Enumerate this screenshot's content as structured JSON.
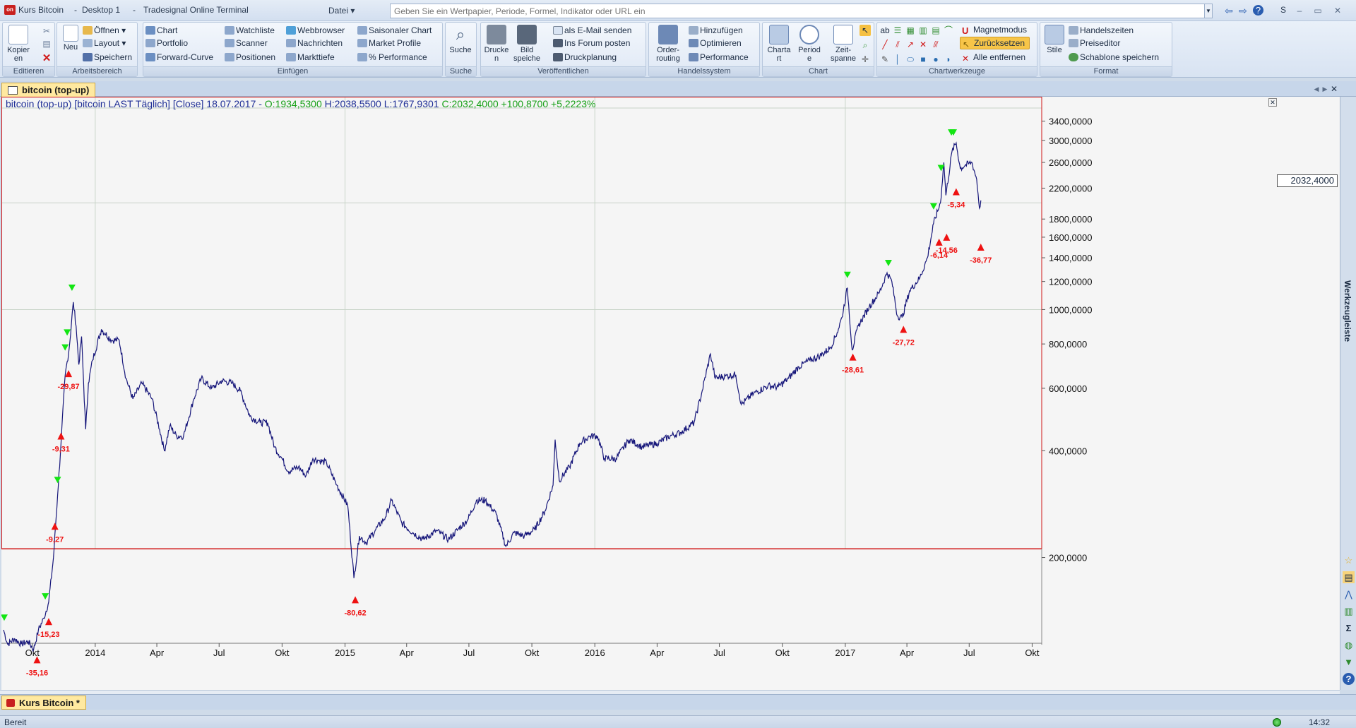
{
  "titlebar": {
    "logo_text": "on",
    "app_title": "Kurs Bitcoin",
    "desktop": "Desktop 1",
    "product": "Tradesignal Online Terminal",
    "file_menu": "Datei",
    "search_placeholder": "Geben Sie ein Wertpapier, Periode, Formel, Indikator oder URL ein",
    "search_hint": "S"
  },
  "ribbon": {
    "groups": [
      {
        "label": "Editieren"
      },
      {
        "label": "Arbeitsbereich"
      },
      {
        "label": "Einfügen"
      },
      {
        "label": "Suche"
      },
      {
        "label": "Veröffentlichen"
      },
      {
        "label": "Handelssystem"
      },
      {
        "label": "Chart"
      },
      {
        "label": "Chartwerkzeuge"
      },
      {
        "label": "Format"
      }
    ],
    "editieren": {
      "kopieren": "Kopier en"
    },
    "arbeitsbereich": {
      "neu": "Neu",
      "oeffnen": "Öffnen",
      "layout": "Layout",
      "speichern": "Speichern"
    },
    "einfuegen": {
      "chart": "Chart",
      "portfolio": "Portfolio",
      "forward_curve": "Forward-Curve",
      "watchliste": "Watchliste",
      "scanner": "Scanner",
      "positionen": "Positionen",
      "webbrowser": "Webbrowser",
      "nachrichten": "Nachrichten",
      "markttiefe": "Markttiefe",
      "saisonaler_chart": "Saisonaler Chart",
      "market_profile": "Market Profile",
      "performance": "% Performance"
    },
    "suche": {
      "suche": "Suche"
    },
    "veroeffentlichen": {
      "drucken": "Drucke n",
      "bild_speichern": "Bild speiche",
      "email": "als E-Mail senden",
      "forum": "Ins Forum posten",
      "druckplanung": "Druckplanung"
    },
    "handelssystem": {
      "orderrouting": "Order-routing",
      "hinzufuegen": "Hinzufügen",
      "optimieren": "Optimieren",
      "performance": "Performance"
    },
    "chart": {
      "chartart": "Charta rt",
      "periode": "Period e",
      "zeitspanne": "Zeit-spanne"
    },
    "chartwerkzeuge": {
      "magnetmodus": "Magnetmodus",
      "zuruecksetzen": "Zurücksetzen",
      "alle_entfernen": "Alle entfernen"
    },
    "format": {
      "stile": "Stile",
      "handelszeiten": "Handelszeiten",
      "preiseditor": "Preiseditor",
      "schablone": "Schablone speichern"
    }
  },
  "chart_tab": {
    "label": "bitcoin (top-up)"
  },
  "chart_header": {
    "prefix": "bitcoin (top-up) [bitcoin LAST Täglich] [Close] 18.07.2017 -",
    "ohlc_open": "O:1934,5300",
    "ohlc_high_low": "H:2038,5500 L:1767,9301",
    "ohlc_change": "C:2032,4000 +100,8700 +5,2223%"
  },
  "price_box": "2032,4000",
  "right_sidebar": {
    "label": "Werkzeugleiste"
  },
  "desktop_tab": {
    "label": "Kurs Bitcoin *"
  },
  "status": {
    "text": "Bereit",
    "time": "14:32"
  },
  "colors": {
    "price_line": "#16167a",
    "buy_marker": "#13e513",
    "sell_marker": "#ee1111",
    "frame_red": "#d01515"
  },
  "chart_data": {
    "type": "line",
    "title": "bitcoin (top-up) [bitcoin LAST Täglich] [Close]",
    "y_scale": "log",
    "ylim": [
      120,
      3600
    ],
    "y_ticks": [
      {
        "label": "3400,0000",
        "value": 3400
      },
      {
        "label": "3000,0000",
        "value": 3000
      },
      {
        "label": "2600,0000",
        "value": 2600
      },
      {
        "label": "2200,0000",
        "value": 2200
      },
      {
        "label": "1800,0000",
        "value": 1800
      },
      {
        "label": "1600,0000",
        "value": 1600
      },
      {
        "label": "1400,0000",
        "value": 1400
      },
      {
        "label": "1200,0000",
        "value": 1200
      },
      {
        "label": "1000,0000",
        "value": 1000
      },
      {
        "label": "800,0000",
        "value": 800
      },
      {
        "label": "600,0000",
        "value": 600
      },
      {
        "label": "400,0000",
        "value": 400
      },
      {
        "label": "200,0000",
        "value": 200
      }
    ],
    "x_ticks": [
      {
        "label": "Okt",
        "date": "2013-10-01"
      },
      {
        "label": "2014",
        "date": "2014-01-01"
      },
      {
        "label": "Apr",
        "date": "2014-04-01"
      },
      {
        "label": "Jul",
        "date": "2014-07-01"
      },
      {
        "label": "Okt",
        "date": "2014-10-01"
      },
      {
        "label": "2015",
        "date": "2015-01-01"
      },
      {
        "label": "Apr",
        "date": "2015-04-01"
      },
      {
        "label": "Jul",
        "date": "2015-07-01"
      },
      {
        "label": "Okt",
        "date": "2015-10-01"
      },
      {
        "label": "2016",
        "date": "2016-01-01"
      },
      {
        "label": "Apr",
        "date": "2016-04-01"
      },
      {
        "label": "Jul",
        "date": "2016-07-01"
      },
      {
        "label": "Okt",
        "date": "2016-10-01"
      },
      {
        "label": "2017",
        "date": "2017-01-01"
      },
      {
        "label": "Apr",
        "date": "2017-04-01"
      },
      {
        "label": "Jul",
        "date": "2017-07-01"
      },
      {
        "label": "Okt",
        "date": "2017-10-01"
      }
    ],
    "xlim": [
      "2013-08-20",
      "2017-10-15"
    ],
    "vertical_grid_dates": [
      "2014-01-01",
      "2015-01-01",
      "2016-01-01",
      "2017-01-01"
    ],
    "horizontal_grid_values": [
      2000,
      1000
    ],
    "series": [
      {
        "points": [
          [
            "2013-08-20",
            125
          ],
          [
            "2013-08-26",
            114
          ],
          [
            "2013-09-05",
            118
          ],
          [
            "2013-09-15",
            114
          ],
          [
            "2013-09-25",
            116
          ],
          [
            "2013-10-03",
            110
          ],
          [
            "2013-10-10",
            125
          ],
          [
            "2013-10-18",
            135
          ],
          [
            "2013-10-25",
            150
          ],
          [
            "2013-11-01",
            200
          ],
          [
            "2013-11-07",
            300
          ],
          [
            "2013-11-12",
            420
          ],
          [
            "2013-11-18",
            650
          ],
          [
            "2013-11-24",
            780
          ],
          [
            "2013-11-30",
            1050
          ],
          [
            "2013-12-04",
            900
          ],
          [
            "2013-12-08",
            700
          ],
          [
            "2013-12-12",
            840
          ],
          [
            "2013-12-18",
            460
          ],
          [
            "2013-12-22",
            620
          ],
          [
            "2013-12-28",
            720
          ],
          [
            "2014-01-10",
            880
          ],
          [
            "2014-01-25",
            820
          ],
          [
            "2014-02-05",
            820
          ],
          [
            "2014-02-15",
            640
          ],
          [
            "2014-02-25",
            560
          ],
          [
            "2014-03-10",
            620
          ],
          [
            "2014-03-25",
            560
          ],
          [
            "2014-04-05",
            460
          ],
          [
            "2014-04-12",
            400
          ],
          [
            "2014-04-20",
            470
          ],
          [
            "2014-04-30",
            440
          ],
          [
            "2014-05-10",
            440
          ],
          [
            "2014-05-25",
            560
          ],
          [
            "2014-06-05",
            640
          ],
          [
            "2014-06-20",
            600
          ],
          [
            "2014-07-05",
            630
          ],
          [
            "2014-07-20",
            620
          ],
          [
            "2014-08-01",
            590
          ],
          [
            "2014-08-15",
            500
          ],
          [
            "2014-08-30",
            480
          ],
          [
            "2014-09-10",
            480
          ],
          [
            "2014-09-20",
            410
          ],
          [
            "2014-10-01",
            380
          ],
          [
            "2014-10-10",
            350
          ],
          [
            "2014-10-25",
            360
          ],
          [
            "2014-11-05",
            340
          ],
          [
            "2014-11-15",
            380
          ],
          [
            "2014-11-25",
            375
          ],
          [
            "2014-12-05",
            370
          ],
          [
            "2014-12-20",
            320
          ],
          [
            "2015-01-05",
            280
          ],
          [
            "2015-01-14",
            175
          ],
          [
            "2015-01-22",
            230
          ],
          [
            "2015-02-01",
            220
          ],
          [
            "2015-02-15",
            240
          ],
          [
            "2015-03-01",
            260
          ],
          [
            "2015-03-10",
            290
          ],
          [
            "2015-03-25",
            250
          ],
          [
            "2015-04-10",
            235
          ],
          [
            "2015-04-25",
            225
          ],
          [
            "2015-05-15",
            238
          ],
          [
            "2015-06-01",
            225
          ],
          [
            "2015-06-15",
            240
          ],
          [
            "2015-06-30",
            257
          ],
          [
            "2015-07-12",
            290
          ],
          [
            "2015-07-25",
            290
          ],
          [
            "2015-08-10",
            265
          ],
          [
            "2015-08-24",
            215
          ],
          [
            "2015-09-05",
            235
          ],
          [
            "2015-09-20",
            230
          ],
          [
            "2015-10-05",
            240
          ],
          [
            "2015-10-20",
            270
          ],
          [
            "2015-11-01",
            320
          ],
          [
            "2015-11-04",
            430
          ],
          [
            "2015-11-10",
            330
          ],
          [
            "2015-11-25",
            360
          ],
          [
            "2015-12-10",
            420
          ],
          [
            "2015-12-25",
            440
          ],
          [
            "2016-01-05",
            440
          ],
          [
            "2016-01-15",
            380
          ],
          [
            "2016-02-01",
            380
          ],
          [
            "2016-02-20",
            430
          ],
          [
            "2016-03-10",
            410
          ],
          [
            "2016-04-01",
            420
          ],
          [
            "2016-04-20",
            440
          ],
          [
            "2016-05-05",
            450
          ],
          [
            "2016-05-25",
            480
          ],
          [
            "2016-06-05",
            580
          ],
          [
            "2016-06-18",
            750
          ],
          [
            "2016-06-25",
            640
          ],
          [
            "2016-07-10",
            650
          ],
          [
            "2016-07-25",
            655
          ],
          [
            "2016-08-02",
            540
          ],
          [
            "2016-08-20",
            580
          ],
          [
            "2016-09-10",
            610
          ],
          [
            "2016-09-25",
            605
          ],
          [
            "2016-10-10",
            640
          ],
          [
            "2016-10-25",
            690
          ],
          [
            "2016-11-10",
            720
          ],
          [
            "2016-11-25",
            740
          ],
          [
            "2016-12-10",
            780
          ],
          [
            "2016-12-20",
            860
          ],
          [
            "2016-12-27",
            950
          ],
          [
            "2017-01-04",
            1150
          ],
          [
            "2017-01-11",
            770
          ],
          [
            "2017-01-20",
            900
          ],
          [
            "2017-02-05",
            1020
          ],
          [
            "2017-02-20",
            1120
          ],
          [
            "2017-03-03",
            1270
          ],
          [
            "2017-03-10",
            1200
          ],
          [
            "2017-03-18",
            960
          ],
          [
            "2017-03-25",
            950
          ],
          [
            "2017-04-05",
            1130
          ],
          [
            "2017-04-20",
            1230
          ],
          [
            "2017-05-01",
            1400
          ],
          [
            "2017-05-10",
            1750
          ],
          [
            "2017-05-20",
            2000
          ],
          [
            "2017-05-25",
            2600
          ],
          [
            "2017-05-28",
            2100
          ],
          [
            "2017-06-06",
            2800
          ],
          [
            "2017-06-12",
            2950
          ],
          [
            "2017-06-18",
            2500
          ],
          [
            "2017-06-25",
            2550
          ],
          [
            "2017-07-05",
            2600
          ],
          [
            "2017-07-12",
            2330
          ],
          [
            "2017-07-16",
            1930
          ],
          [
            "2017-07-18",
            2032
          ]
        ]
      }
    ],
    "buy_markers": [
      {
        "date": "2013-08-21",
        "value": 135
      },
      {
        "date": "2013-10-20",
        "value": 155
      },
      {
        "date": "2013-11-07",
        "value": 330
      },
      {
        "date": "2013-11-18",
        "value": 780
      },
      {
        "date": "2013-11-21",
        "value": 860
      },
      {
        "date": "2013-11-28",
        "value": 1150
      },
      {
        "date": "2017-01-04",
        "value": 1250
      },
      {
        "date": "2017-03-05",
        "value": 1350
      },
      {
        "date": "2017-05-10",
        "value": 1950
      },
      {
        "date": "2017-05-21",
        "value": 2500
      },
      {
        "date": "2017-06-05",
        "value": 3150
      },
      {
        "date": "2017-06-08",
        "value": 3150
      }
    ],
    "sell_markers": [
      {
        "date": "2013-10-08",
        "value": 103,
        "label": "-35,16"
      },
      {
        "date": "2013-10-25",
        "value": 132,
        "label": "-15,23"
      },
      {
        "date": "2013-11-03",
        "value": 245,
        "label": "-9,27"
      },
      {
        "date": "2013-11-12",
        "value": 440,
        "label": "-9,31"
      },
      {
        "date": "2013-11-23",
        "value": 660,
        "label": "-29,87"
      },
      {
        "date": "2015-01-16",
        "value": 152,
        "label": "-80,62"
      },
      {
        "date": "2017-01-12",
        "value": 735,
        "label": "-28,61"
      },
      {
        "date": "2017-03-27",
        "value": 880,
        "label": "-27,72"
      },
      {
        "date": "2017-05-18",
        "value": 1550,
        "label": "-6,14"
      },
      {
        "date": "2017-05-29",
        "value": 1600,
        "label": "-14,56"
      },
      {
        "date": "2017-06-12",
        "value": 2150,
        "label": "-5,34"
      },
      {
        "date": "2017-07-18",
        "value": 1500,
        "label": "-36,77"
      }
    ]
  }
}
